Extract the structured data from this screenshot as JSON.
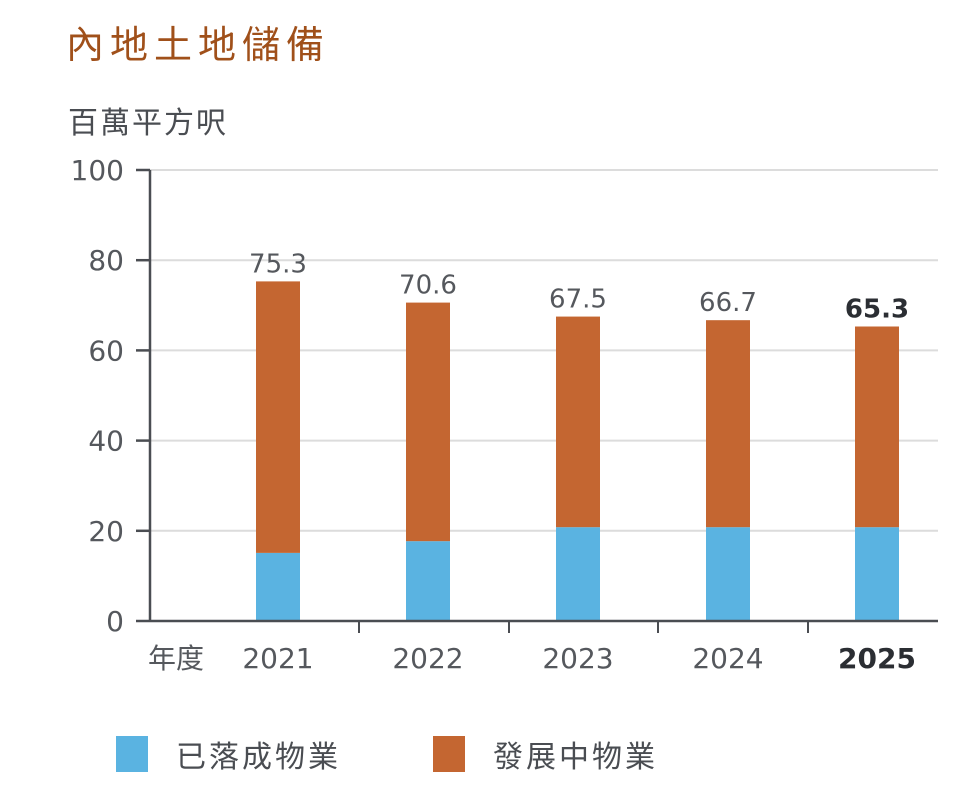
{
  "chart_data": {
    "type": "bar",
    "stacked": true,
    "title": "內地土地儲備",
    "ylabel": "百萬平方呎",
    "xlabel": "年度",
    "categories": [
      "2021",
      "2022",
      "2023",
      "2024",
      "2025"
    ],
    "highlight_category": "2025",
    "ylim": [
      0,
      100
    ],
    "yticks": [
      "0",
      "20",
      "40",
      "60",
      "80",
      "100"
    ],
    "grid": true,
    "series": [
      {
        "name": "已落成物業",
        "color": "#5ab3e1",
        "values": [
          15.1,
          17.7,
          20.8,
          20.8,
          20.8
        ]
      },
      {
        "name": "發展中物業",
        "color": "#c46631",
        "values": [
          60.2,
          52.9,
          46.7,
          45.9,
          44.5
        ]
      }
    ],
    "totals": [
      75.3,
      70.6,
      67.5,
      66.7,
      65.3
    ],
    "total_labels": [
      "75.3",
      "70.6",
      "67.5",
      "66.7",
      "65.3"
    ],
    "legend_position": "bottom-left"
  }
}
